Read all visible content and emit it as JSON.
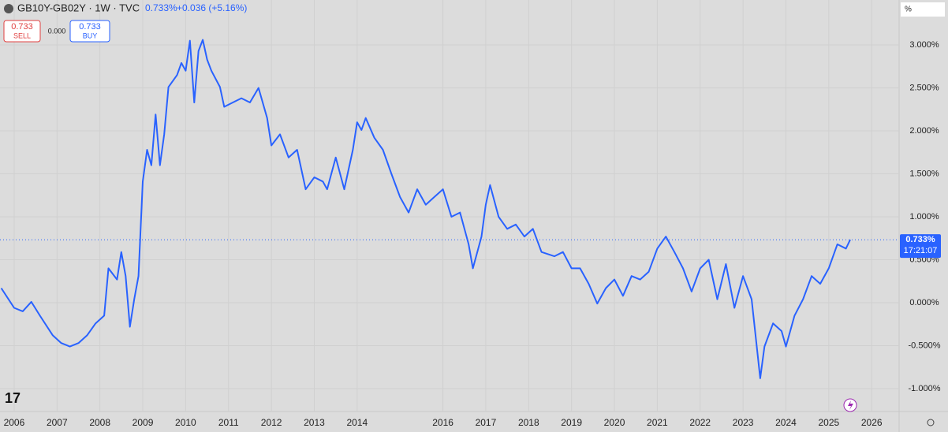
{
  "chart_data": {
    "type": "line",
    "title": "GB10Y-GB02Y · 1W · TVC",
    "header": {
      "last": "0.733%",
      "change": "+0.036 (+5.16%)",
      "sell_price": "0.733",
      "sell": "SELL",
      "spread": "0.000",
      "buy_price": "0.733",
      "buy": "BUY",
      "unit": "%"
    },
    "last_price": {
      "value": 0.733,
      "label": "0.733%"
    },
    "countdown": "17:21:07",
    "color": "#2962ff",
    "x": [
      2005.7,
      2006.0,
      2006.2,
      2006.4,
      2006.6,
      2006.9,
      2007.1,
      2007.3,
      2007.5,
      2007.7,
      2007.9,
      2008.1,
      2008.2,
      2008.4,
      2008.5,
      2008.6,
      2008.7,
      2008.8,
      2008.9,
      2009.0,
      2009.1,
      2009.2,
      2009.3,
      2009.4,
      2009.5,
      2009.6,
      2009.8,
      2009.9,
      2010.0,
      2010.1,
      2010.2,
      2010.3,
      2010.4,
      2010.5,
      2010.6,
      2010.8,
      2010.9,
      2011.1,
      2011.3,
      2011.5,
      2011.7,
      2011.9,
      2012.0,
      2012.2,
      2012.4,
      2012.6,
      2012.8,
      2013.0,
      2013.2,
      2013.3,
      2013.5,
      2013.7,
      2013.9,
      2014.0,
      2014.1,
      2014.2,
      2014.4,
      2014.6,
      2014.8,
      2015.0,
      2015.2,
      2015.4,
      2015.6,
      2015.8,
      2016.0,
      2016.2,
      2016.4,
      2016.6,
      2016.7,
      2016.9,
      2017.0,
      2017.1,
      2017.3,
      2017.5,
      2017.7,
      2017.9,
      2018.1,
      2018.3,
      2018.6,
      2018.8,
      2019.0,
      2019.2,
      2019.4,
      2019.6,
      2019.8,
      2020.0,
      2020.2,
      2020.4,
      2020.6,
      2020.8,
      2021.0,
      2021.2,
      2021.4,
      2021.6,
      2021.8,
      2022.0,
      2022.2,
      2022.4,
      2022.6,
      2022.8,
      2023.0,
      2023.2,
      2023.4,
      2023.5,
      2023.7,
      2023.9,
      2024.0,
      2024.2,
      2024.4,
      2024.6,
      2024.8,
      2025.0,
      2025.2,
      2025.4,
      2025.5
    ],
    "values": [
      0.17,
      -0.06,
      -0.1,
      0.01,
      -0.15,
      -0.38,
      -0.47,
      -0.51,
      -0.47,
      -0.38,
      -0.24,
      -0.15,
      0.4,
      0.27,
      0.59,
      0.31,
      -0.28,
      0.04,
      0.31,
      1.41,
      1.78,
      1.6,
      2.19,
      1.6,
      1.96,
      2.51,
      2.65,
      2.79,
      2.7,
      3.05,
      2.33,
      2.93,
      3.06,
      2.83,
      2.7,
      2.51,
      2.28,
      2.33,
      2.38,
      2.33,
      2.5,
      2.15,
      1.83,
      1.96,
      1.69,
      1.78,
      1.32,
      1.46,
      1.41,
      1.32,
      1.69,
      1.32,
      1.78,
      2.1,
      2.01,
      2.15,
      1.92,
      1.78,
      1.5,
      1.23,
      1.05,
      1.32,
      1.14,
      1.23,
      1.32,
      1.0,
      1.05,
      0.68,
      0.4,
      0.77,
      1.14,
      1.37,
      1.0,
      0.86,
      0.91,
      0.77,
      0.86,
      0.59,
      0.54,
      0.59,
      0.4,
      0.4,
      0.22,
      -0.01,
      0.17,
      0.27,
      0.08,
      0.31,
      0.27,
      0.36,
      0.63,
      0.77,
      0.59,
      0.4,
      0.13,
      0.4,
      0.5,
      0.04,
      0.45,
      -0.06,
      0.31,
      0.04,
      -0.88,
      -0.51,
      -0.24,
      -0.33,
      -0.51,
      -0.15,
      0.04,
      0.31,
      0.22,
      0.4,
      0.68,
      0.63,
      0.733
    ],
    "xlim": [
      2005.67,
      2026.64
    ],
    "xticks": [
      2006,
      2007,
      2008,
      2009,
      2010,
      2011,
      2012,
      2013,
      2014,
      2016,
      2017,
      2018,
      2019,
      2020,
      2021,
      2022,
      2023,
      2024,
      2025,
      2026
    ],
    "ylim": [
      -1.266,
      3.523
    ],
    "yticks": [
      {
        "value": -1,
        "label": "-1.000%"
      },
      {
        "value": -0.5,
        "label": "-0.500%"
      },
      {
        "value": 0,
        "label": "0.000%"
      },
      {
        "value": 0.5,
        "label": "0.500%"
      },
      {
        "value": 1,
        "label": "1.000%"
      },
      {
        "value": 1.5,
        "label": "1.500%"
      },
      {
        "value": 2,
        "label": "2.000%"
      },
      {
        "value": 2.5,
        "label": "2.500%"
      },
      {
        "value": 3,
        "label": "3.000%"
      }
    ],
    "grid": true
  }
}
